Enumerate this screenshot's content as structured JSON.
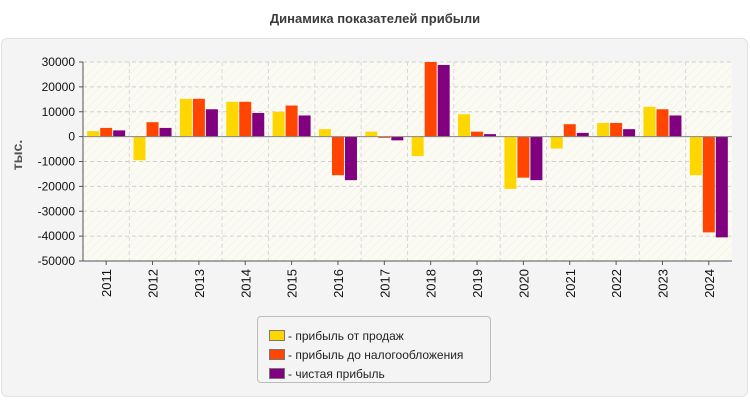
{
  "chart_data": {
    "type": "bar",
    "title": "Динамика показателей прибыли",
    "ylabel": "тыс.",
    "xlabel": "",
    "ylim": [
      -50000,
      30000
    ],
    "yticks": [
      30000,
      20000,
      10000,
      0,
      -10000,
      -20000,
      -30000,
      -40000,
      -50000
    ],
    "grid": true,
    "legend_position": "bottom",
    "categories": [
      "2011",
      "2012",
      "2013",
      "2014",
      "2015",
      "2016",
      "2017",
      "2018",
      "2019",
      "2020",
      "2021",
      "2022",
      "2023",
      "2024"
    ],
    "series": [
      {
        "name": "прибыль от продаж",
        "color": "#ffd700",
        "values": [
          2200,
          -9500,
          15200,
          14000,
          10000,
          3000,
          2000,
          -7800,
          9000,
          -21000,
          -4800,
          5500,
          12000,
          -15500
        ]
      },
      {
        "name": "прибыль до налогообложения",
        "color": "#ff4500",
        "values": [
          3500,
          5800,
          15200,
          14000,
          12500,
          -15500,
          -500,
          30000,
          2000,
          -16500,
          5000,
          5500,
          11000,
          -38500
        ]
      },
      {
        "name": "чистая прибыль",
        "color": "#800080",
        "values": [
          2500,
          3500,
          11000,
          9500,
          8500,
          -17500,
          -1500,
          28800,
          1000,
          -17500,
          1500,
          3000,
          8500,
          -40500
        ]
      }
    ]
  }
}
